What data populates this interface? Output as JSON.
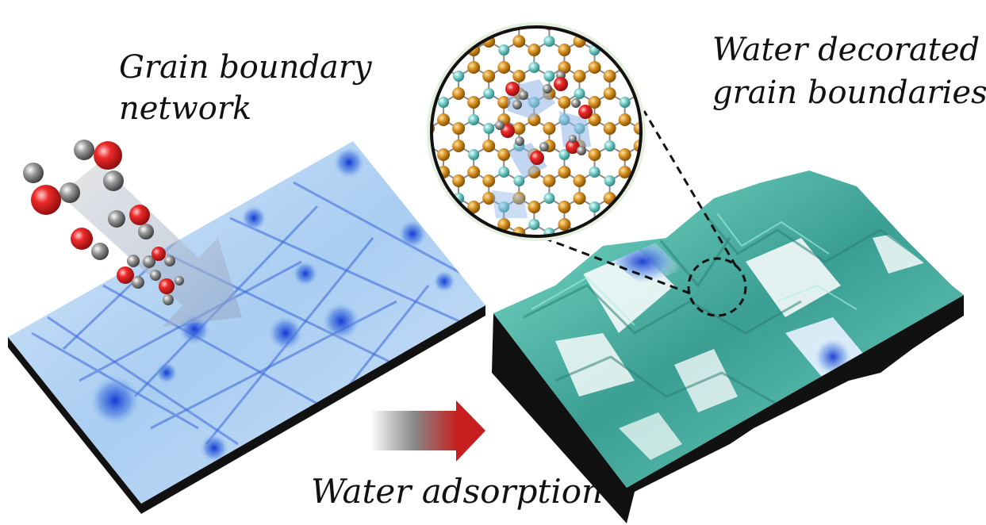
{
  "labels": {
    "left_line1": "Grain boundary",
    "left_line2": "network",
    "right_line1": "Water decorated",
    "right_line2": "grain boundaries",
    "bottom": "Water adsorption"
  },
  "colors": {
    "left_surface": "#9cc6ee",
    "left_surface_light": "#dcebfb",
    "left_boundary": "#1f48c9",
    "right_surface": "#3fa89a",
    "right_surface_light": "#7fe3cf",
    "right_valley": "#2a4fcf",
    "slab_side": "#111111",
    "oxygen": "#e21e1e",
    "hydrogen": "#8a8a8a",
    "lattice_gold": "#d18a1b",
    "lattice_teal": "#6cc6c2",
    "arrow_red": "#c71f1f"
  },
  "icons": {
    "water_molecule": "water-molecule-icon",
    "transition_arrow": "right-arrow-icon"
  }
}
